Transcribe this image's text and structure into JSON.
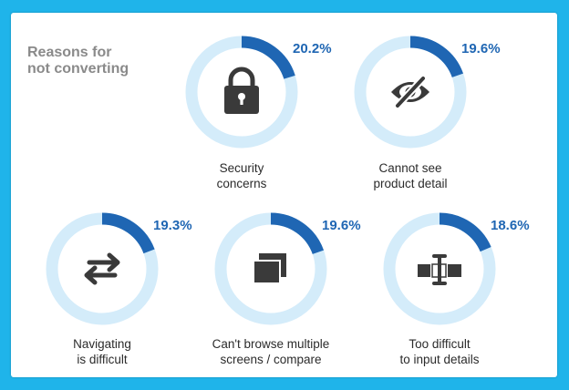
{
  "title": {
    "line1": "Reasons for",
    "line2": "not converting"
  },
  "colors": {
    "accent": "#1f66b3",
    "track": "#d4ecfa",
    "icon": "#3a3a3a",
    "frame": "#1fb4ea"
  },
  "chart_data": {
    "type": "pie",
    "title": "Reasons for not converting",
    "items": [
      {
        "label_line1": "Security",
        "label_line2": "concerns",
        "value": 20.2,
        "display": "20.2%",
        "icon": "lock-icon"
      },
      {
        "label_line1": "Cannot see",
        "label_line2": "product detail",
        "value": 19.6,
        "display": "19.6%",
        "icon": "eye-slash-icon"
      },
      {
        "label_line1": "Navigating",
        "label_line2": "is difficult",
        "value": 19.3,
        "display": "19.3%",
        "icon": "arrows-swap-icon"
      },
      {
        "label_line1": "Can't browse multiple",
        "label_line2": "screens / compare",
        "value": 19.6,
        "display": "19.6%",
        "icon": "stacked-screens-icon"
      },
      {
        "label_line1": "Too difficult",
        "label_line2": "to input details",
        "value": 18.6,
        "display": "18.6%",
        "icon": "text-cursor-icon"
      }
    ]
  }
}
